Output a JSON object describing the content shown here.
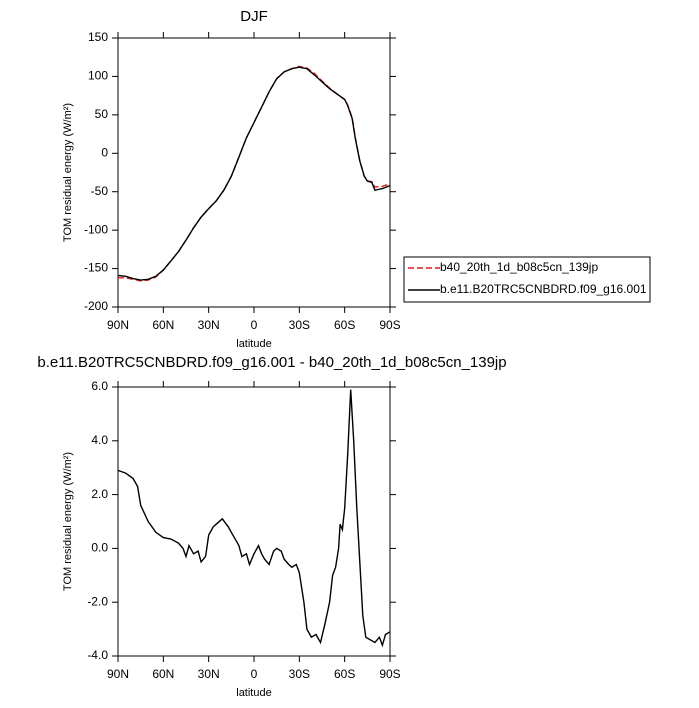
{
  "chart_data": [
    {
      "type": "line",
      "title": "DJF",
      "xlabel": "latitude",
      "ylabel": "TOM residual energy (W/m²)",
      "x": [
        90,
        85,
        80,
        75,
        70,
        65,
        60,
        55,
        50,
        45,
        40,
        35,
        30,
        25,
        20,
        15,
        10,
        5,
        0,
        -5,
        -10,
        -15,
        -20,
        -25,
        -30,
        -35,
        -40,
        -45,
        -50,
        -55,
        -60,
        -62,
        -65,
        -67,
        -70,
        -73,
        -75,
        -78,
        -80,
        -85,
        -90
      ],
      "series": [
        {
          "name": "b40_20th_1d_b08c5cn_139jp",
          "color": "#e41a1c",
          "dash": "dashed",
          "values": [
            -162,
            -162,
            -164,
            -166,
            -165,
            -161,
            -152,
            -140,
            -128,
            -113,
            -97,
            -83,
            -72,
            -62,
            -48,
            -30,
            -5,
            20,
            40,
            60,
            80,
            97,
            106,
            110,
            113,
            111,
            104,
            94,
            85,
            77,
            70,
            63,
            46,
            21,
            -10,
            -30,
            -36,
            -37,
            -44,
            -43,
            -40
          ]
        },
        {
          "name": "b.e11.B20TRC5CNBDRD.f09_g16.001",
          "color": "#000000",
          "dash": "solid",
          "values": [
            -159,
            -160,
            -163,
            -165,
            -164,
            -160,
            -152,
            -140,
            -128,
            -113,
            -97,
            -83,
            -72,
            -62,
            -48,
            -30,
            -5,
            20,
            40,
            60,
            80,
            97,
            106,
            110,
            112,
            110,
            102,
            93,
            84,
            77,
            70,
            62,
            45,
            20,
            -10,
            -30,
            -36,
            -38,
            -48,
            -46,
            -42
          ]
        }
      ],
      "xlim": [
        90,
        -90
      ],
      "xticks": [
        {
          "value": 90,
          "label": "90N"
        },
        {
          "value": 60,
          "label": "60N"
        },
        {
          "value": 30,
          "label": "30N"
        },
        0,
        {
          "value": -30,
          "label": "30S"
        },
        {
          "value": -60,
          "label": "60S"
        },
        {
          "value": -90,
          "label": "90S"
        }
      ],
      "ylim": [
        -200,
        150
      ],
      "yticks": [
        150,
        100,
        50,
        0,
        -50,
        -100,
        -150,
        -200
      ],
      "legend": "right"
    },
    {
      "type": "line",
      "title": "b.e11.B20TRC5CNBDRD.f09_g16.001 - b40_20th_1d_b08c5cn_139jp",
      "xlabel": "latitude",
      "ylabel": "TOM residual energy (W/m²)",
      "x": [
        90,
        85,
        80,
        77,
        75,
        70,
        65,
        60,
        55,
        50,
        47,
        45,
        43,
        40,
        37,
        35,
        32,
        30,
        27,
        25,
        21,
        17,
        15,
        12,
        10,
        8,
        5,
        3,
        0,
        -3,
        -5,
        -7,
        -10,
        -13,
        -15,
        -18,
        -20,
        -23,
        -25,
        -28,
        -30,
        -33,
        -35,
        -38,
        -41,
        -44,
        -47,
        -50,
        -52,
        -54,
        -56,
        -57,
        -58.5,
        -60,
        -62,
        -64,
        -66,
        -68,
        -70,
        -72,
        -74,
        -77,
        -80,
        -83,
        -85,
        -87,
        -90
      ],
      "series": [
        {
          "color": "#000000",
          "dash": "solid",
          "values": [
            2.9,
            2.8,
            2.6,
            2.3,
            1.6,
            1.0,
            0.6,
            0.4,
            0.35,
            0.2,
            0.0,
            -0.3,
            0.1,
            -0.2,
            -0.1,
            -0.5,
            -0.3,
            0.5,
            0.8,
            0.9,
            1.1,
            0.8,
            0.6,
            0.3,
            0.1,
            -0.3,
            -0.2,
            -0.6,
            -0.2,
            0.1,
            -0.2,
            -0.4,
            -0.6,
            -0.1,
            0.0,
            -0.1,
            -0.4,
            -0.6,
            -0.7,
            -0.6,
            -0.9,
            -2.0,
            -3.0,
            -3.3,
            -3.2,
            -3.5,
            -2.8,
            -2.0,
            -1.0,
            -0.7,
            0.0,
            0.9,
            0.7,
            1.5,
            3.5,
            5.9,
            4.0,
            1.5,
            -0.5,
            -2.5,
            -3.3,
            -3.4,
            -3.5,
            -3.3,
            -3.6,
            -3.2,
            -3.1
          ]
        }
      ],
      "xlim": [
        90,
        -90
      ],
      "xticks": [
        {
          "value": 90,
          "label": "90N"
        },
        {
          "value": 60,
          "label": "60N"
        },
        {
          "value": 30,
          "label": "30N"
        },
        0,
        {
          "value": -30,
          "label": "30S"
        },
        {
          "value": -60,
          "label": "60S"
        },
        {
          "value": -90,
          "label": "90S"
        }
      ],
      "ylim": [
        -4,
        6
      ],
      "yticks": [
        {
          "value": 6,
          "label": "6.0"
        },
        {
          "value": 4,
          "label": "4.0"
        },
        {
          "value": 2,
          "label": "2.0"
        },
        {
          "value": 0,
          "label": "0.0"
        },
        {
          "value": -2,
          "label": "-2.0"
        },
        {
          "value": -4,
          "label": "-4.0"
        }
      ]
    }
  ]
}
